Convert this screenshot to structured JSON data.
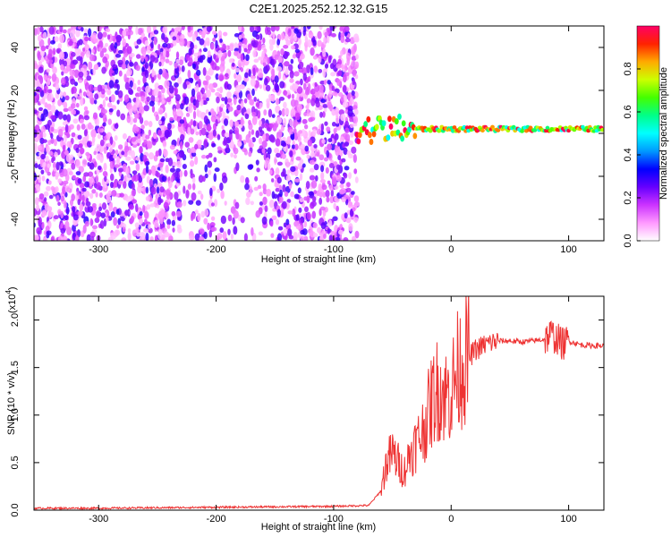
{
  "chart_data": [
    {
      "type": "heatmap",
      "title": "C2E1.2025.252.12.32.G15",
      "xlabel": "Height of straight line (km)",
      "ylabel": "Frequency (Hz)",
      "xlim": [
        -355,
        130
      ],
      "ylim": [
        -50,
        50
      ],
      "xticks": [
        -300,
        -200,
        -100,
        0,
        100
      ],
      "xtick_labels": [
        "-300",
        "-200",
        "-100",
        "0",
        "100"
      ],
      "yticks": [
        -40,
        -20,
        0,
        20,
        40
      ],
      "ytick_labels": [
        "-40",
        "-20",
        "0",
        "20",
        "40"
      ],
      "colorbar": {
        "label": "Normalized spectral amplitude",
        "range": [
          0,
          1
        ],
        "ticks": [
          0.0,
          0.2,
          0.4,
          0.6,
          0.8
        ],
        "tick_labels": [
          "0.0",
          "0.2",
          "0.4",
          "0.6",
          "0.8"
        ],
        "colors": [
          "#ffffff",
          "#ff99ff",
          "#cc33ff",
          "#6600ff",
          "#0000ff",
          "#0099ff",
          "#00ffff",
          "#00ff88",
          "#44ff00",
          "#ccff00",
          "#ffaa00",
          "#ff2200",
          "#ff0066"
        ]
      },
      "regions": [
        {
          "name": "diffuse scattering",
          "x_range": [
            -355,
            -80
          ],
          "y_range": [
            -50,
            50
          ],
          "amplitude_range": [
            0.05,
            0.3
          ]
        },
        {
          "name": "tracking line",
          "x_range": [
            -80,
            130
          ],
          "y_center": 2,
          "amplitude_range": [
            0.5,
            1.0
          ]
        }
      ]
    },
    {
      "type": "line",
      "xlabel": "Height of straight line (km)",
      "ylabel": "SNR (10 * v/v)",
      "scale_label": "(x10",
      "scale_exponent": "4",
      "series_color": "#ee3333",
      "xlim": [
        -355,
        130
      ],
      "ylim": [
        0,
        2.25
      ],
      "xticks": [
        -300,
        -200,
        -100,
        0,
        100
      ],
      "xtick_labels": [
        "-300",
        "-200",
        "-100",
        "0",
        "100"
      ],
      "yticks": [
        0.0,
        0.5,
        1.0,
        1.5,
        2.0
      ],
      "ytick_labels": [
        "0.0",
        "0.5",
        "1.0",
        "1.5",
        "2.0"
      ],
      "series": [
        {
          "name": "SNR",
          "x": [
            -355,
            -300,
            -200,
            -100,
            -70,
            -60,
            -55,
            -50,
            -45,
            -40,
            -35,
            -30,
            -25,
            -20,
            -15,
            -10,
            -5,
            0,
            5,
            10,
            15,
            20,
            30,
            40,
            50,
            60,
            70,
            80,
            85,
            90,
            95,
            100,
            110,
            120,
            130
          ],
          "y": [
            0.02,
            0.02,
            0.03,
            0.04,
            0.05,
            0.2,
            0.5,
            0.6,
            0.5,
            0.4,
            0.6,
            0.7,
            0.8,
            1.0,
            1.2,
            1.3,
            1.2,
            1.25,
            1.45,
            1.55,
            1.6,
            1.68,
            1.75,
            1.78,
            1.78,
            1.77,
            1.78,
            1.8,
            1.85,
            1.8,
            1.75,
            1.78,
            1.74,
            1.73,
            1.73
          ]
        }
      ]
    }
  ]
}
